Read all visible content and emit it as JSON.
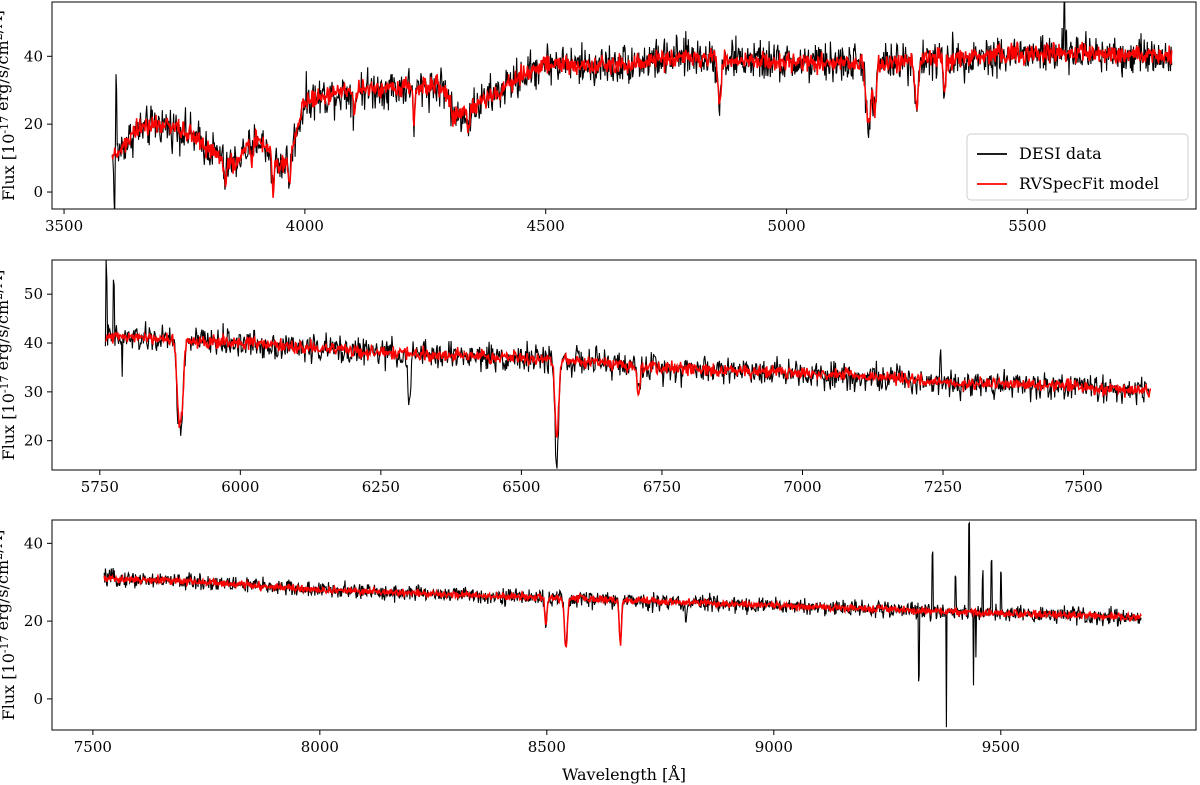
{
  "chart_data": [
    {
      "type": "line",
      "title": "",
      "xlabel": "",
      "ylabel": "Flux [10^-17 erg/s/cm^2/Å]",
      "xlim": [
        3475,
        5850
      ],
      "ylim": [
        -5,
        56
      ],
      "xticks": [
        3500,
        4000,
        4500,
        5000,
        5500
      ],
      "yticks": [
        0,
        20,
        40
      ],
      "legend": {
        "placement": "lower-right",
        "entries": [
          "DESI data",
          "RVSpecFit model"
        ]
      },
      "series": [
        {
          "name": "DESI data",
          "color": "#000000",
          "noise": 4.5,
          "points": [
            [
              3600,
              10
            ],
            [
              3650,
              18
            ],
            [
              3700,
              20
            ],
            [
              3750,
              18
            ],
            [
              3800,
              13
            ],
            [
              3850,
              8
            ],
            [
              3900,
              16
            ],
            [
              3950,
              8
            ],
            [
              3970,
              11
            ],
            [
              4000,
              27
            ],
            [
              4100,
              30
            ],
            [
              4200,
              31
            ],
            [
              4290,
              31
            ],
            [
              4310,
              22
            ],
            [
              4350,
              25
            ],
            [
              4450,
              34
            ],
            [
              4500,
              38
            ],
            [
              4600,
              37
            ],
            [
              4800,
              40
            ],
            [
              5000,
              38
            ],
            [
              5200,
              38
            ],
            [
              5400,
              40
            ],
            [
              5600,
              41
            ],
            [
              5800,
              40
            ]
          ],
          "dips": [
            [
              3835,
              -7
            ],
            [
              3890,
              -5
            ],
            [
              3934,
              -10
            ],
            [
              3968,
              -7
            ],
            [
              4102,
              -6
            ],
            [
              4227,
              -10
            ],
            [
              4340,
              -6
            ],
            [
              4861,
              -14
            ],
            [
              5167,
              -14
            ],
            [
              5173,
              -14
            ],
            [
              5183,
              -16
            ],
            [
              5270,
              -14
            ],
            [
              5328,
              -10
            ]
          ],
          "spikes": [
            [
              3605,
              -16
            ],
            [
              3608,
              20
            ],
            [
              5577,
              15
            ]
          ]
        },
        {
          "name": "RVSpecFit model",
          "color": "#ff0000",
          "noise": 2.2,
          "points": [
            [
              3600,
              10
            ],
            [
              3650,
              18
            ],
            [
              3700,
              20
            ],
            [
              3750,
              18
            ],
            [
              3800,
              13
            ],
            [
              3850,
              8
            ],
            [
              3900,
              16
            ],
            [
              3950,
              8
            ],
            [
              3970,
              11
            ],
            [
              4000,
              27
            ],
            [
              4100,
              30
            ],
            [
              4200,
              31
            ],
            [
              4290,
              31
            ],
            [
              4310,
              22
            ],
            [
              4350,
              25
            ],
            [
              4450,
              34
            ],
            [
              4500,
              38
            ],
            [
              4600,
              37
            ],
            [
              4800,
              40
            ],
            [
              5000,
              38
            ],
            [
              5200,
              38
            ],
            [
              5400,
              40
            ],
            [
              5600,
              41
            ],
            [
              5800,
              40
            ]
          ],
          "dips": [
            [
              3835,
              -7
            ],
            [
              3890,
              -5
            ],
            [
              3934,
              -10
            ],
            [
              3968,
              -7
            ],
            [
              4102,
              -6
            ],
            [
              4227,
              -10
            ],
            [
              4340,
              -6
            ],
            [
              4861,
              -14
            ],
            [
              5167,
              -14
            ],
            [
              5173,
              -14
            ],
            [
              5183,
              -16
            ],
            [
              5270,
              -14
            ],
            [
              5328,
              -10
            ]
          ],
          "spikes": []
        }
      ]
    },
    {
      "type": "line",
      "title": "",
      "xlabel": "",
      "ylabel": "Flux [10^-17 erg/s/cm^2/Å]",
      "xlim": [
        5665,
        7700
      ],
      "ylim": [
        14,
        57
      ],
      "xticks": [
        5750,
        6000,
        6250,
        6500,
        6750,
        7000,
        7250,
        7500
      ],
      "yticks": [
        20,
        30,
        40,
        50
      ],
      "series": [
        {
          "name": "DESI data",
          "color": "#000000",
          "noise": 2.2,
          "points": [
            [
              5760,
              41
            ],
            [
              5800,
              41
            ],
            [
              6000,
              40
            ],
            [
              6250,
              38
            ],
            [
              6500,
              37
            ],
            [
              6750,
              35
            ],
            [
              7000,
              34
            ],
            [
              7250,
              32
            ],
            [
              7500,
              31
            ],
            [
              7620,
              30
            ]
          ],
          "dips": [
            [
              5890,
              -15
            ],
            [
              5896,
              -14
            ],
            [
              6300,
              -12
            ],
            [
              6563,
              -21
            ],
            [
              6708,
              -6
            ]
          ],
          "spikes": [
            [
              5762,
              14
            ],
            [
              5775,
              10
            ],
            [
              5790,
              -10
            ],
            [
              7245,
              7
            ]
          ]
        },
        {
          "name": "RVSpecFit model",
          "color": "#ff0000",
          "noise": 1.0,
          "points": [
            [
              5760,
              41
            ],
            [
              5800,
              41
            ],
            [
              6000,
              40
            ],
            [
              6250,
              38
            ],
            [
              6500,
              37
            ],
            [
              6750,
              35
            ],
            [
              7000,
              34
            ],
            [
              7250,
              32
            ],
            [
              7500,
              31
            ],
            [
              7620,
              30
            ]
          ],
          "dips": [
            [
              5890,
              -14
            ],
            [
              5896,
              -13
            ],
            [
              6563,
              -16
            ],
            [
              6708,
              -6
            ]
          ],
          "spikes": []
        }
      ]
    },
    {
      "type": "line",
      "title": "",
      "xlabel": "Wavelength [Å]",
      "ylabel": "Flux [10^-17 erg/s/cm^2/Å]",
      "xlim": [
        7410,
        9930
      ],
      "ylim": [
        -8,
        46
      ],
      "xticks": [
        7500,
        8000,
        8500,
        9000,
        9500
      ],
      "yticks": [
        0,
        20,
        40
      ],
      "series": [
        {
          "name": "DESI data",
          "color": "#000000",
          "noise": 1.6,
          "points": [
            [
              7525,
              31
            ],
            [
              7750,
              30
            ],
            [
              8000,
              28
            ],
            [
              8250,
              27
            ],
            [
              8500,
              26
            ],
            [
              8750,
              25
            ],
            [
              9000,
              24
            ],
            [
              9250,
              23
            ],
            [
              9500,
              22
            ],
            [
              9810,
              21
            ]
          ],
          "dips": [
            [
              8498,
              -7
            ],
            [
              8542,
              -13
            ],
            [
              8662,
              -11
            ],
            [
              8806,
              -4
            ]
          ],
          "spikes": [
            [
              9320,
              -16
            ],
            [
              9350,
              15
            ],
            [
              9380,
              -28
            ],
            [
              9400,
              10
            ],
            [
              9430,
              22
            ],
            [
              9440,
              -20
            ],
            [
              9445,
              -10
            ],
            [
              9460,
              10
            ],
            [
              9480,
              14
            ],
            [
              9500,
              9
            ]
          ]
        },
        {
          "name": "RVSpecFit model",
          "color": "#ff0000",
          "noise": 0.7,
          "points": [
            [
              7525,
              31
            ],
            [
              7750,
              30
            ],
            [
              8000,
              28
            ],
            [
              8250,
              27
            ],
            [
              8500,
              26
            ],
            [
              8750,
              25
            ],
            [
              9000,
              24
            ],
            [
              9250,
              23
            ],
            [
              9500,
              22
            ],
            [
              9810,
              21
            ]
          ],
          "dips": [
            [
              8498,
              -7
            ],
            [
              8542,
              -13
            ],
            [
              8662,
              -11
            ]
          ],
          "spikes": []
        }
      ]
    }
  ]
}
